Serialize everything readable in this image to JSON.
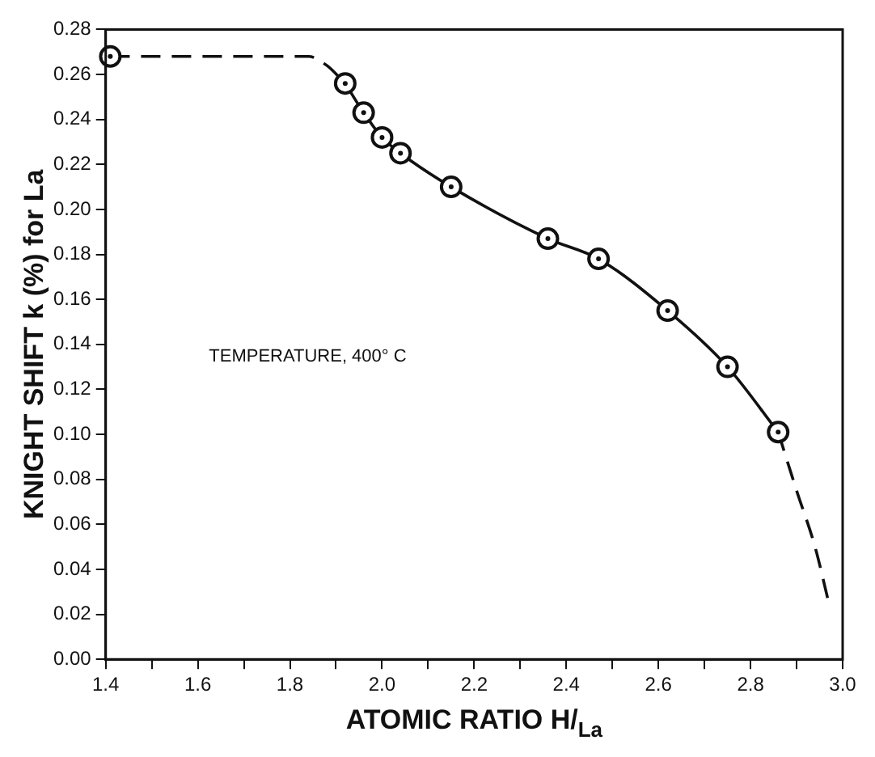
{
  "chart_data": {
    "type": "scatter",
    "xlabel": "ATOMIC RATIO H/$_{La}$",
    "ylabel": "KNIGHT SHIFT k (%) for La",
    "annotations": [
      "TEMPERATURE, 400° C"
    ],
    "xlim": [
      1.4,
      3.0
    ],
    "ylim": [
      0,
      0.28
    ],
    "xticks": [
      1.4,
      {
        "value": 1.5,
        "label": null
      },
      1.6,
      {
        "value": 1.7,
        "label": null
      },
      1.8,
      {
        "value": 1.9,
        "label": null
      },
      {
        "value": 2,
        "label": "2.0"
      },
      {
        "value": 2.1,
        "label": null
      },
      2.2,
      {
        "value": 2.3,
        "label": null
      },
      2.4,
      {
        "value": 2.5,
        "label": null
      },
      2.6,
      {
        "value": 2.7,
        "label": null
      },
      2.8,
      {
        "value": 2.9,
        "label": null
      },
      {
        "value": 3,
        "label": "3.0"
      }
    ],
    "yticks": [
      {
        "value": 0,
        "label": "0.00"
      },
      {
        "value": 0.02,
        "label": "0.02"
      },
      {
        "value": 0.04,
        "label": "0.04"
      },
      {
        "value": 0.06,
        "label": "0.06"
      },
      {
        "value": 0.08,
        "label": "0.08"
      },
      {
        "value": 0.1,
        "label": "0.10"
      },
      {
        "value": 0.12,
        "label": "0.12"
      },
      {
        "value": 0.14,
        "label": "0.14"
      },
      {
        "value": 0.16,
        "label": "0.16"
      },
      {
        "value": 0.18,
        "label": "0.18"
      },
      {
        "value": 0.2,
        "label": "0.20"
      },
      {
        "value": 0.22,
        "label": "0.22"
      },
      {
        "value": 0.24,
        "label": "0.24"
      },
      {
        "value": 0.26,
        "label": "0.26"
      },
      {
        "value": 0.28,
        "label": "0.28"
      }
    ],
    "grid": false,
    "legend": false,
    "series": [
      {
        "color": "#111111",
        "marker": "circle",
        "x": [
          1.41
        ],
        "values": [
          0.268
        ]
      },
      {
        "type": "line",
        "color": "#111111",
        "line_style": "dashed",
        "x": [
          1.41,
          1.84,
          1.88,
          1.92
        ],
        "values": [
          0.268,
          0.268,
          0.264,
          0.256
        ]
      },
      {
        "type": "line",
        "color": "#111111",
        "line_style": "solid",
        "marker": "circle",
        "x": [
          1.92,
          1.96,
          2.0,
          2.04,
          2.15,
          2.36,
          2.47,
          2.62,
          2.75,
          2.86
        ],
        "values": [
          0.256,
          0.243,
          0.232,
          0.225,
          0.21,
          0.187,
          0.178,
          0.155,
          0.13,
          0.101
        ]
      },
      {
        "type": "line",
        "color": "#111111",
        "line_style": "dashed",
        "x": [
          2.86,
          2.9,
          2.94,
          2.97
        ],
        "values": [
          0.101,
          0.075,
          0.05,
          0.025
        ]
      }
    ]
  }
}
